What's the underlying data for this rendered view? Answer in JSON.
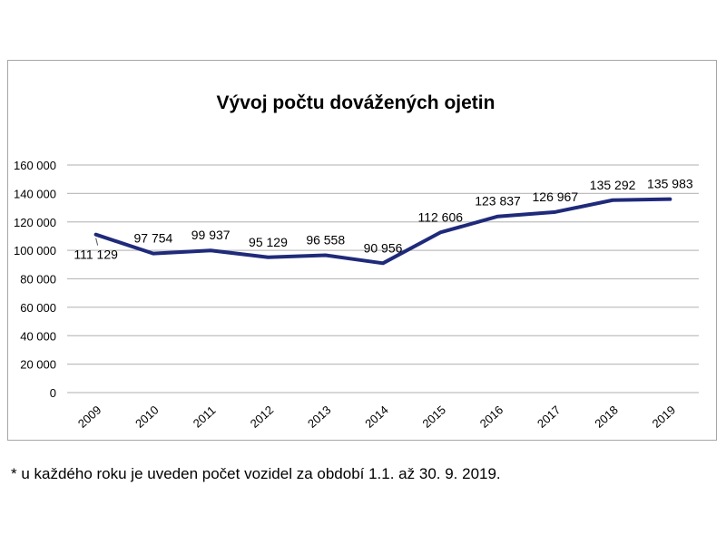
{
  "chart_data": {
    "type": "line",
    "title": "Vývoj počtu dovážených ojetin",
    "categories": [
      "2009",
      "2010",
      "2011",
      "2012",
      "2013",
      "2014",
      "2015",
      "2016",
      "2017",
      "2018",
      "2019"
    ],
    "values": [
      111129,
      97754,
      99937,
      95129,
      96558,
      90956,
      112606,
      123837,
      126967,
      135292,
      135983
    ],
    "data_labels": [
      "111 129",
      "97 754",
      "99 937",
      "95 129",
      "96 558",
      "90 956",
      "112 606",
      "123 837",
      "126 967",
      "135 292",
      "135 983"
    ],
    "yticks": [
      0,
      20000,
      40000,
      60000,
      80000,
      100000,
      120000,
      140000,
      160000
    ],
    "ytick_labels": [
      "0",
      "20 000",
      "40 000",
      "60 000",
      "80 000",
      "100 000",
      "120 000",
      "140 000",
      "160 000"
    ],
    "ylim": [
      0,
      160000
    ],
    "grid": true,
    "legend": "none",
    "line_color": "#1f2a7a",
    "grid_color": "#bfbfbf"
  },
  "footnote": "* u každého roku je uveden počet vozidel za období 1.1. až 30. 9. 2019."
}
